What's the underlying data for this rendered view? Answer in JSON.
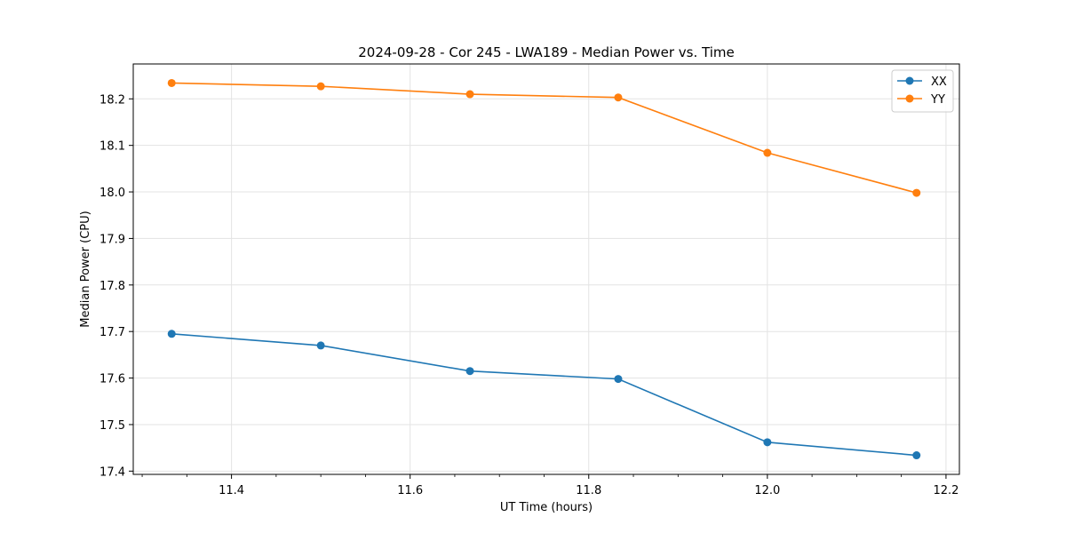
{
  "chart_data": {
    "type": "line",
    "title": "2024-09-28 - Cor 245 - LWA189 - Median Power vs. Time",
    "xlabel": "UT Time (hours)",
    "ylabel": "Median Power (CPU)",
    "xlim": [
      11.29,
      12.215
    ],
    "ylim": [
      17.393,
      18.275
    ],
    "xticks": [
      11.4,
      11.6,
      11.8,
      12.0,
      12.2
    ],
    "xtick_labels": [
      "11.4",
      "11.6",
      "11.8",
      "12.0",
      "12.2"
    ],
    "yticks": [
      17.4,
      17.5,
      17.6,
      17.7,
      17.8,
      17.9,
      18.0,
      18.1,
      18.2
    ],
    "ytick_labels": [
      "17.4",
      "17.5",
      "17.6",
      "17.7",
      "17.8",
      "17.9",
      "18.0",
      "18.1",
      "18.2"
    ],
    "grid": true,
    "legend_position": "top-right",
    "x": [
      11.333,
      11.5,
      11.667,
      11.833,
      12.0,
      12.167
    ],
    "series": [
      {
        "name": "XX",
        "color": "#1f77b4",
        "values": [
          17.695,
          17.67,
          17.615,
          17.598,
          17.462,
          17.434
        ]
      },
      {
        "name": "YY",
        "color": "#ff7f0e",
        "values": [
          18.234,
          18.227,
          18.21,
          18.203,
          18.084,
          17.998
        ]
      }
    ]
  }
}
